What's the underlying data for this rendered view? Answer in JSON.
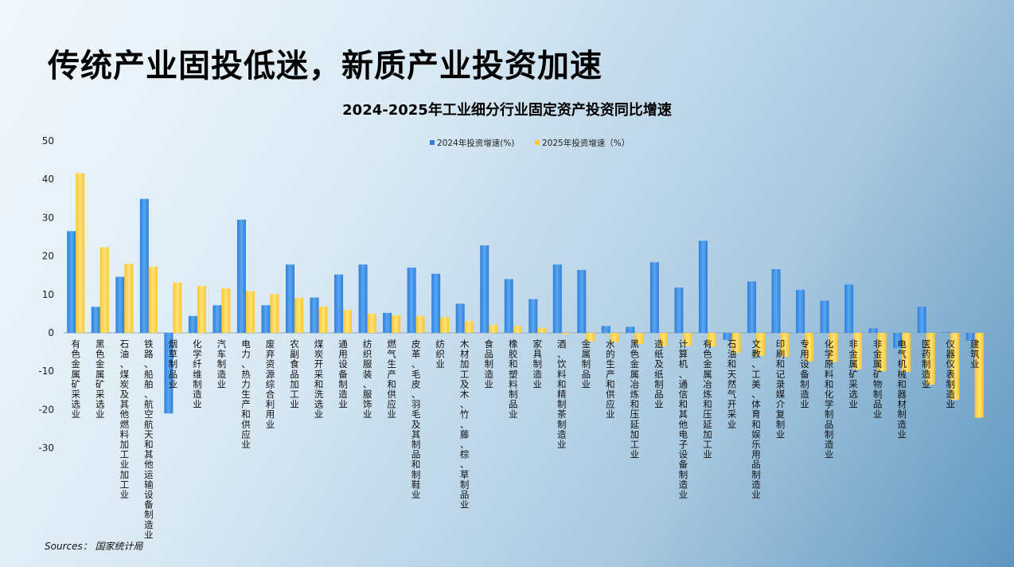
{
  "headline": "传统产业固投低迷，新质产业投资加速",
  "source": "Sources： 国家统计局",
  "colors": {
    "series_2024": "#2e7fdb",
    "series_2025": "#ffc52b"
  },
  "chart_data": {
    "type": "bar",
    "title": "2024-2025年工业细分行业固定资产投资同比增速",
    "xlabel": "",
    "ylabel": "",
    "ylim": [
      -30,
      50
    ],
    "yticks": [
      50,
      40,
      30,
      20,
      10,
      0,
      -10,
      -20,
      -30
    ],
    "grid": false,
    "legend_position": "top-center",
    "categories": [
      "有色金属矿采选业",
      "黑色金属矿采选业",
      "石油、煤炭及其他燃料加工业加工业",
      "铁路、船舶、航空航天和其他运输设备制造业",
      "烟草制品业",
      "化学纤维制造业",
      "汽车制造业",
      "电力、热力生产和供应业",
      "废弃资源综合利用业",
      "农副食品加工业",
      "煤炭开采和洗选业",
      "通用设备制造业",
      "纺织服装、服饰业",
      "燃气生产和供应业",
      "皮革、毛皮、羽毛及其制品和制鞋业",
      "纺织业",
      "木材加工及木、竹、藤、棕、草制品业",
      "食品制造业",
      "橡胶和塑料制品业",
      "家具制造业",
      "酒、饮料和精制茶制造业",
      "金属制品业",
      "水的生产和供应业",
      "黑色金属冶炼和压延加工业",
      "造纸及纸制品业",
      "计算机、通信和其他电子设备制造业",
      "有色金属冶炼和压延加工业",
      "石油和天然气开采业",
      "文教、工美、体育和娱乐用品制造业",
      "印刷和记录媒介复制业",
      "专用设备制造业",
      "化学原料和化学制品制造业",
      "非金属矿采选业",
      "非金属矿物制品业",
      "电气机械和器材制造业",
      "医药制造业",
      "仪器仪表制造业",
      "建筑业"
    ],
    "series": [
      {
        "name": "2024年投资增速(%)",
        "values": [
          26.5,
          6.8,
          14.6,
          34.9,
          -21.0,
          4.4,
          7.2,
          29.5,
          7.2,
          17.8,
          9.2,
          15.2,
          17.8,
          5.2,
          17.0,
          15.4,
          7.6,
          22.8,
          14.0,
          8.8,
          17.8,
          16.4,
          1.8,
          1.6,
          18.4,
          11.8,
          24.0,
          -1.8,
          13.4,
          16.6,
          11.2,
          8.4,
          12.6,
          1.2,
          -4.0,
          6.8,
          0.2,
          -2.0
        ]
      },
      {
        "name": "2025年投资增速（%）",
        "values": [
          41.6,
          22.3,
          18.0,
          17.2,
          13.1,
          12.2,
          11.6,
          10.9,
          10.1,
          9.2,
          6.8,
          6.0,
          5.0,
          4.6,
          4.4,
          4.1,
          3.1,
          2.1,
          1.8,
          1.3,
          -0.3,
          -2.2,
          -2.4,
          -2.9,
          -3.4,
          -3.4,
          -3.6,
          -5.2,
          -5.9,
          -6.2,
          -7.4,
          -7.6,
          -9.5,
          -10.0,
          -10.2,
          -13.5,
          -17.5,
          -22.1
        ]
      }
    ]
  }
}
